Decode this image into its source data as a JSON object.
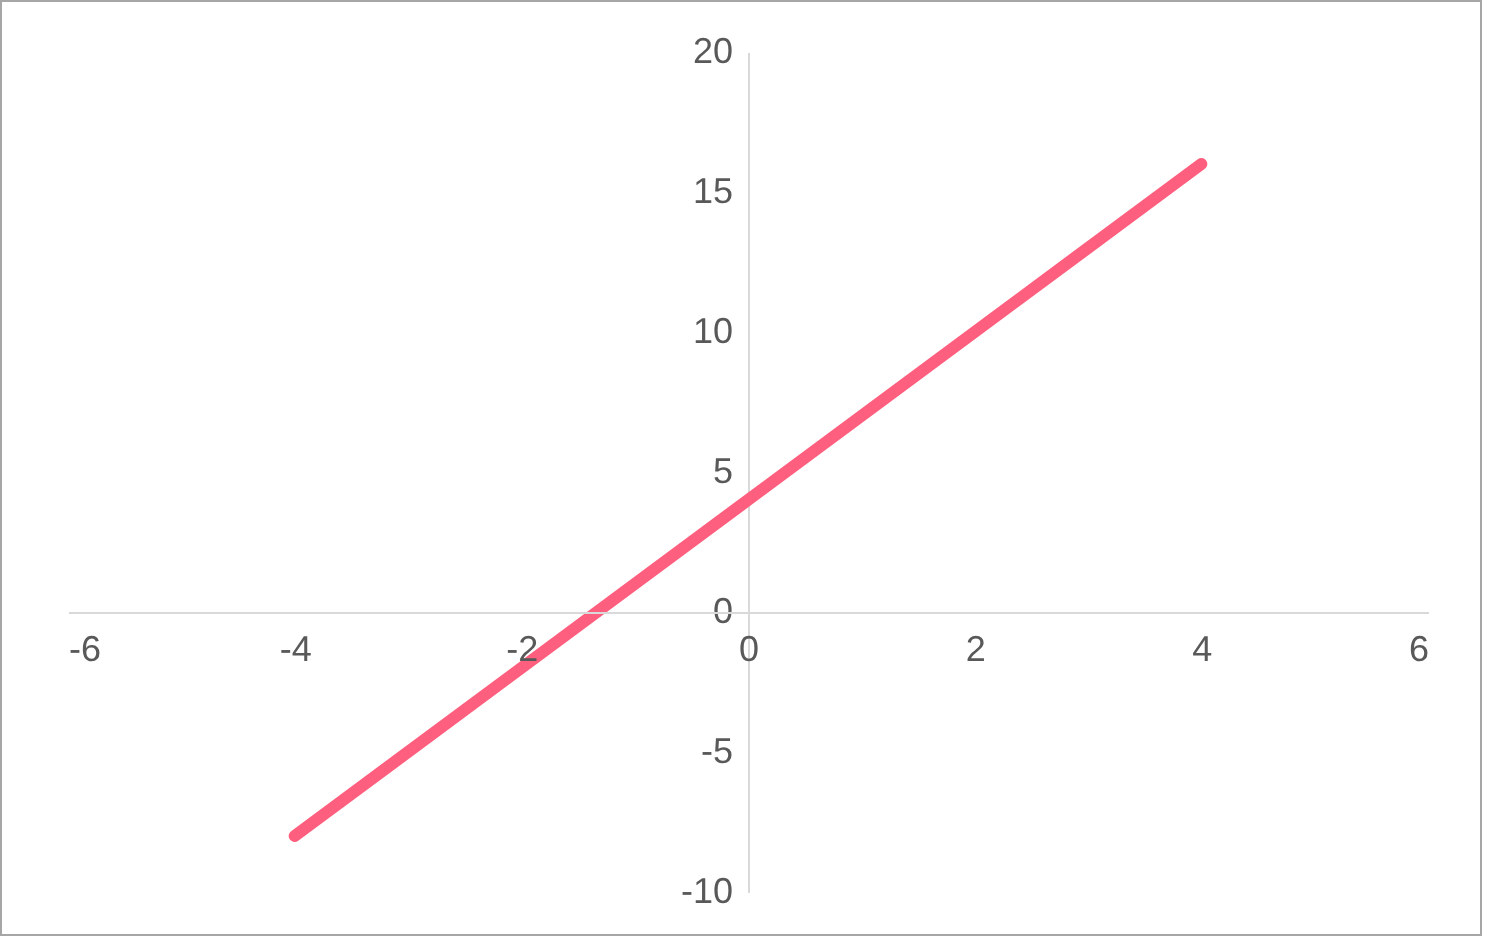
{
  "chart_data": {
    "type": "line",
    "x": [
      -4,
      4
    ],
    "series": [
      {
        "color": "#ff5f7e",
        "values": [
          -8,
          16
        ]
      }
    ],
    "xlim": [
      -6,
      6
    ],
    "xticks": [
      -6,
      -4,
      -2,
      0,
      2,
      4,
      6
    ],
    "ylim": [
      -10,
      20
    ],
    "yticks": [
      -10,
      -5,
      0,
      5,
      10,
      15,
      20
    ],
    "grid": false,
    "marker": "none",
    "line_style": "solid"
  }
}
